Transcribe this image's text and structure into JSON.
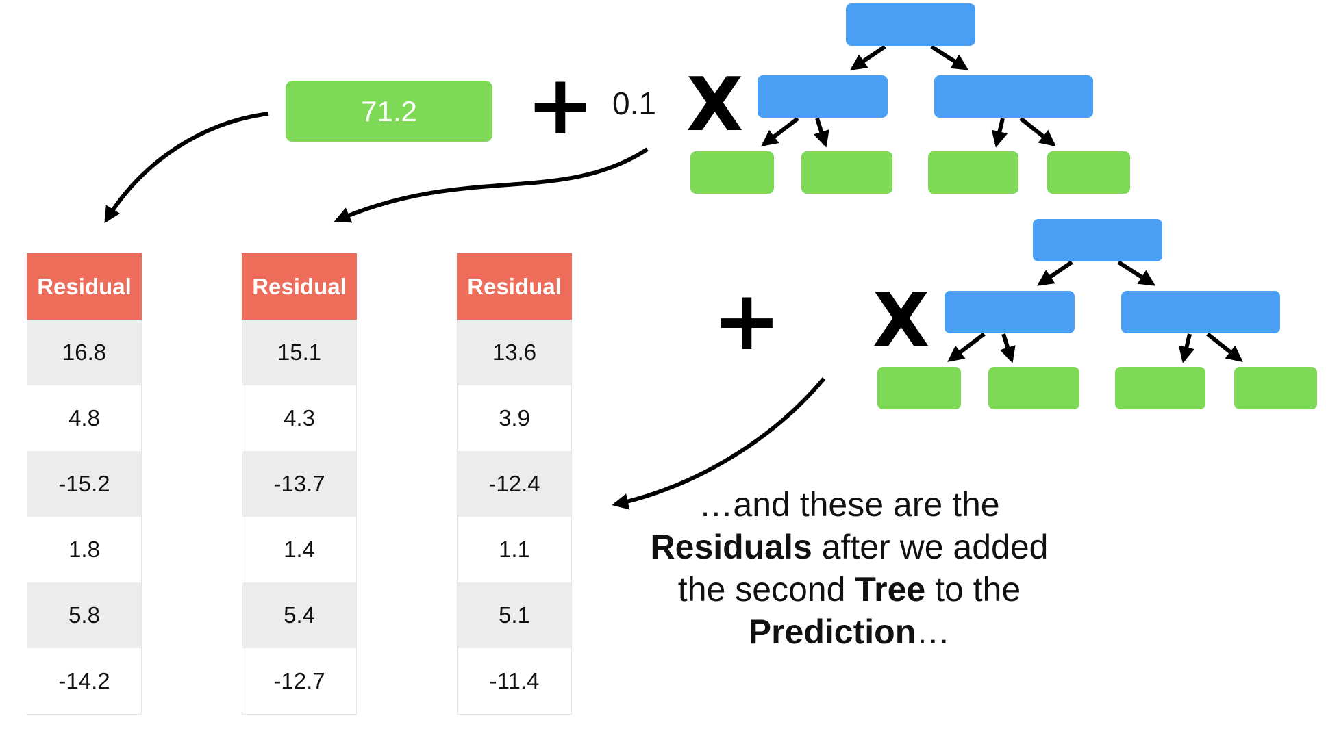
{
  "initial_prediction": "71.2",
  "operators": {
    "plus": "+",
    "times": "X"
  },
  "learning_rate": "0.1",
  "residual_tables": [
    {
      "header": "Residual",
      "values": [
        "16.8",
        "4.8",
        "-15.2",
        "1.8",
        "5.8",
        "-14.2"
      ]
    },
    {
      "header": "Residual",
      "values": [
        "15.1",
        "4.3",
        "-13.7",
        "1.4",
        "5.4",
        "-12.7"
      ]
    },
    {
      "header": "Residual",
      "values": [
        "13.6",
        "3.9",
        "-12.4",
        "1.1",
        "5.1",
        "-11.4"
      ]
    }
  ],
  "caption": {
    "line1": "…and these are the",
    "line2_bold": "Residuals",
    "line2_rest": " after we added",
    "line3_start": "the second ",
    "line3_bold": "Tree",
    "line3_end": " to the",
    "line4_bold": "Prediction",
    "line4_end": "…"
  },
  "colors": {
    "node_blue": "#4a9ef4",
    "leaf_green": "#7ed957",
    "header_red": "#ed6d5a"
  }
}
